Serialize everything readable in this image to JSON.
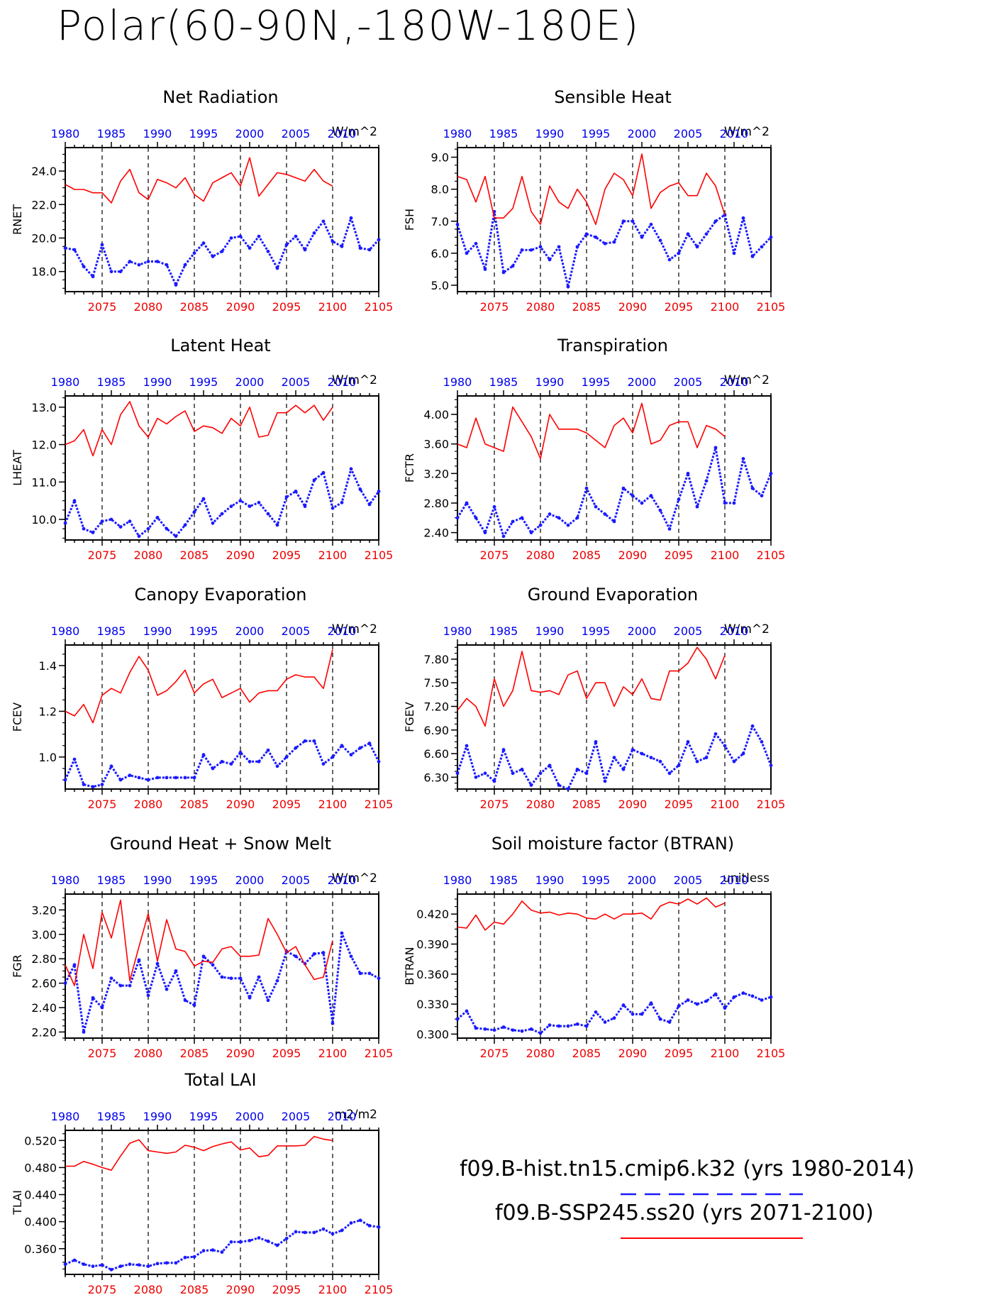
{
  "page": {
    "title": "Polar(60-90N,-180W-180E)",
    "legend": {
      "entries": [
        {
          "label": "f09.B-hist.tn15.cmip6.k32 (yrs 1980-2014)",
          "color": "#1a1aff",
          "style": "dashed"
        },
        {
          "label": "f09.B-SSP245.ss20 (yrs 2071-2100)",
          "color": "#ff0000",
          "style": "solid"
        }
      ]
    }
  },
  "chart_data": [
    {
      "type": "line",
      "title": "Net Radiation",
      "ylabel": "RNET",
      "unit": "W/m^2",
      "ylim": [
        16.8,
        25.4
      ],
      "yticks": [
        18.0,
        20.0,
        22.0,
        24.0
      ],
      "ytick_decimals": 1,
      "series": [
        {
          "axis": "top",
          "x_start": 1980,
          "values": [
            19.4,
            19.3,
            18.3,
            17.7,
            19.6,
            18.0,
            18.0,
            18.6,
            18.4,
            18.6,
            18.6,
            18.4,
            17.2,
            18.4,
            19.1,
            19.7,
            18.9,
            19.2,
            20.0,
            20.1,
            19.4,
            20.1,
            19.2,
            18.2,
            19.6,
            20.1,
            19.3,
            20.3,
            21.0,
            19.8,
            19.5,
            21.2,
            19.4,
            19.3,
            19.9
          ]
        },
        {
          "axis": "bottom",
          "x_start": 2071,
          "values": [
            23.2,
            22.9,
            22.9,
            22.7,
            22.7,
            22.1,
            23.4,
            24.1,
            22.7,
            22.3,
            23.5,
            23.3,
            23.0,
            23.6,
            22.6,
            22.2,
            23.3,
            23.6,
            23.9,
            23.1,
            24.8,
            22.5,
            23.2,
            23.9,
            23.8,
            23.6,
            23.4,
            24.1,
            23.4,
            23.1
          ]
        }
      ]
    },
    {
      "type": "line",
      "title": "Sensible Heat",
      "ylabel": "FSH",
      "unit": "W/m^2",
      "ylim": [
        4.8,
        9.3
      ],
      "yticks": [
        5.0,
        6.0,
        7.0,
        8.0,
        9.0
      ],
      "ytick_decimals": 1,
      "series": [
        {
          "axis": "top",
          "x_start": 1980,
          "values": [
            6.9,
            6.0,
            6.3,
            5.5,
            7.3,
            5.4,
            5.6,
            6.1,
            6.1,
            6.2,
            5.8,
            6.2,
            4.95,
            6.2,
            6.6,
            6.5,
            6.3,
            6.35,
            7.0,
            7.0,
            6.5,
            6.9,
            6.4,
            5.8,
            6.0,
            6.6,
            6.2,
            6.6,
            7.0,
            7.2,
            6.0,
            7.1,
            5.9,
            6.2,
            6.5
          ]
        },
        {
          "axis": "bottom",
          "x_start": 2071,
          "values": [
            8.4,
            8.3,
            7.6,
            8.4,
            7.1,
            7.1,
            7.4,
            8.4,
            7.3,
            6.9,
            8.1,
            7.6,
            7.4,
            8.0,
            7.6,
            6.9,
            8.0,
            8.5,
            8.3,
            7.8,
            9.1,
            7.4,
            7.9,
            8.1,
            8.2,
            7.8,
            7.8,
            8.5,
            8.1,
            7.2
          ]
        }
      ]
    },
    {
      "type": "line",
      "title": "Latent Heat",
      "ylabel": "LHEAT",
      "unit": "W/m^2",
      "ylim": [
        9.45,
        13.3
      ],
      "yticks": [
        10.0,
        11.0,
        12.0,
        13.0
      ],
      "ytick_decimals": 1,
      "series": [
        {
          "axis": "top",
          "x_start": 1980,
          "values": [
            9.9,
            10.5,
            9.75,
            9.65,
            9.95,
            10.0,
            9.8,
            9.95,
            9.55,
            9.75,
            10.05,
            9.75,
            9.55,
            9.85,
            10.2,
            10.55,
            9.9,
            10.15,
            10.35,
            10.5,
            10.35,
            10.45,
            10.15,
            9.85,
            10.6,
            10.75,
            10.35,
            11.05,
            11.25,
            10.3,
            10.45,
            11.35,
            10.8,
            10.4,
            10.75
          ]
        },
        {
          "axis": "bottom",
          "x_start": 2071,
          "values": [
            12.0,
            12.1,
            12.4,
            11.7,
            12.4,
            12.0,
            12.8,
            13.15,
            12.5,
            12.2,
            12.7,
            12.55,
            12.75,
            12.9,
            12.35,
            12.5,
            12.45,
            12.3,
            12.7,
            12.5,
            13.0,
            12.2,
            12.25,
            12.85,
            12.85,
            13.05,
            12.85,
            13.05,
            12.65,
            13.0
          ]
        }
      ]
    },
    {
      "type": "line",
      "title": "Transpiration",
      "ylabel": "FCTR",
      "unit": "W/m^2",
      "ylim": [
        2.3,
        4.25
      ],
      "yticks": [
        2.4,
        2.8,
        3.2,
        3.6,
        4.0
      ],
      "ytick_decimals": 2,
      "series": [
        {
          "axis": "top",
          "x_start": 1980,
          "values": [
            2.6,
            2.8,
            2.6,
            2.4,
            2.75,
            2.35,
            2.55,
            2.6,
            2.4,
            2.5,
            2.65,
            2.6,
            2.5,
            2.6,
            3.0,
            2.75,
            2.65,
            2.55,
            3.0,
            2.9,
            2.8,
            2.9,
            2.7,
            2.45,
            2.85,
            3.2,
            2.75,
            3.1,
            3.55,
            2.8,
            2.8,
            3.4,
            3.0,
            2.9,
            3.2
          ]
        },
        {
          "axis": "bottom",
          "x_start": 2071,
          "values": [
            3.6,
            3.55,
            3.95,
            3.6,
            3.55,
            3.5,
            4.1,
            3.9,
            3.7,
            3.4,
            4.0,
            3.8,
            3.8,
            3.8,
            3.75,
            3.65,
            3.55,
            3.85,
            3.95,
            3.75,
            4.15,
            3.6,
            3.65,
            3.85,
            3.9,
            3.9,
            3.55,
            3.85,
            3.8,
            3.7
          ]
        }
      ]
    },
    {
      "type": "line",
      "title": "Canopy Evaporation",
      "ylabel": "FCEV",
      "unit": "W/m^2",
      "ylim": [
        0.86,
        1.49
      ],
      "yticks": [
        1.0,
        1.2,
        1.4
      ],
      "ytick_decimals": 1,
      "series": [
        {
          "axis": "top",
          "x_start": 1980,
          "values": [
            0.9,
            0.99,
            0.88,
            0.87,
            0.88,
            0.96,
            0.9,
            0.92,
            0.91,
            0.9,
            0.91,
            0.91,
            0.91,
            0.91,
            0.91,
            1.01,
            0.95,
            0.98,
            0.97,
            1.02,
            0.98,
            0.98,
            1.03,
            0.96,
            1.0,
            1.04,
            1.07,
            1.07,
            0.97,
            1.0,
            1.05,
            1.01,
            1.04,
            1.06,
            0.98
          ]
        },
        {
          "axis": "bottom",
          "x_start": 2071,
          "values": [
            1.2,
            1.18,
            1.23,
            1.15,
            1.27,
            1.3,
            1.28,
            1.37,
            1.44,
            1.38,
            1.27,
            1.29,
            1.33,
            1.38,
            1.28,
            1.32,
            1.34,
            1.26,
            1.28,
            1.3,
            1.24,
            1.28,
            1.29,
            1.29,
            1.34,
            1.36,
            1.35,
            1.35,
            1.3,
            1.47
          ]
        }
      ]
    },
    {
      "type": "line",
      "title": "Ground Evaporation",
      "ylabel": "FGEV",
      "unit": "W/m^2",
      "ylim": [
        6.15,
        7.98
      ],
      "yticks": [
        6.3,
        6.6,
        6.9,
        7.2,
        7.5,
        7.8
      ],
      "ytick_decimals": 2,
      "series": [
        {
          "axis": "top",
          "x_start": 1980,
          "values": [
            6.35,
            6.7,
            6.3,
            6.35,
            6.25,
            6.65,
            6.35,
            6.4,
            6.2,
            6.35,
            6.45,
            6.2,
            6.15,
            6.4,
            6.35,
            6.75,
            6.25,
            6.55,
            6.4,
            6.65,
            6.6,
            6.55,
            6.5,
            6.35,
            6.45,
            6.75,
            6.5,
            6.55,
            6.85,
            6.7,
            6.5,
            6.6,
            6.95,
            6.75,
            6.45
          ]
        },
        {
          "axis": "bottom",
          "x_start": 2071,
          "values": [
            7.15,
            7.3,
            7.2,
            6.95,
            7.55,
            7.2,
            7.4,
            7.9,
            7.4,
            7.38,
            7.4,
            7.35,
            7.6,
            7.65,
            7.3,
            7.5,
            7.5,
            7.2,
            7.45,
            7.35,
            7.55,
            7.3,
            7.28,
            7.65,
            7.65,
            7.75,
            7.95,
            7.8,
            7.55,
            7.85
          ]
        }
      ]
    },
    {
      "type": "line",
      "title": "Ground Heat + Snow Melt",
      "ylabel": "FGR",
      "unit": "W/m^2",
      "ylim": [
        2.15,
        3.33
      ],
      "yticks": [
        2.2,
        2.4,
        2.6,
        2.8,
        3.0,
        3.2
      ],
      "ytick_decimals": 2,
      "series": [
        {
          "axis": "top",
          "x_start": 1980,
          "values": [
            2.6,
            2.75,
            2.2,
            2.48,
            2.4,
            2.64,
            2.58,
            2.58,
            2.79,
            2.5,
            2.76,
            2.55,
            2.7,
            2.46,
            2.42,
            2.82,
            2.75,
            2.65,
            2.64,
            2.64,
            2.48,
            2.65,
            2.46,
            2.62,
            2.86,
            2.82,
            2.76,
            2.84,
            2.85,
            2.27,
            3.01,
            2.82,
            2.68,
            2.68,
            2.64
          ]
        },
        {
          "axis": "bottom",
          "x_start": 2071,
          "values": [
            2.75,
            2.58,
            3.0,
            2.72,
            3.18,
            2.97,
            3.28,
            2.62,
            2.9,
            3.17,
            2.78,
            3.12,
            2.88,
            2.86,
            2.74,
            2.78,
            2.77,
            2.88,
            2.9,
            2.82,
            2.82,
            2.83,
            3.13,
            3.0,
            2.85,
            2.9,
            2.75,
            2.63,
            2.65,
            2.95
          ]
        }
      ]
    },
    {
      "type": "line",
      "title": "Soil moisture factor (BTRAN)",
      "ylabel": "BTRAN",
      "unit": "unitless",
      "ylim": [
        0.296,
        0.44
      ],
      "yticks": [
        0.3,
        0.33,
        0.36,
        0.39,
        0.42
      ],
      "ytick_decimals": 3,
      "series": [
        {
          "axis": "top",
          "x_start": 1980,
          "values": [
            0.315,
            0.323,
            0.306,
            0.305,
            0.304,
            0.307,
            0.304,
            0.303,
            0.305,
            0.301,
            0.309,
            0.308,
            0.308,
            0.31,
            0.308,
            0.322,
            0.312,
            0.316,
            0.329,
            0.32,
            0.32,
            0.331,
            0.315,
            0.312,
            0.328,
            0.334,
            0.33,
            0.333,
            0.34,
            0.326,
            0.337,
            0.341,
            0.338,
            0.334,
            0.337
          ]
        },
        {
          "axis": "bottom",
          "x_start": 2071,
          "values": [
            0.407,
            0.406,
            0.419,
            0.404,
            0.412,
            0.41,
            0.42,
            0.433,
            0.424,
            0.421,
            0.422,
            0.419,
            0.421,
            0.42,
            0.416,
            0.415,
            0.42,
            0.415,
            0.42,
            0.42,
            0.421,
            0.415,
            0.428,
            0.432,
            0.43,
            0.435,
            0.43,
            0.436,
            0.427,
            0.431
          ]
        }
      ]
    },
    {
      "type": "line",
      "title": "Total LAI",
      "ylabel": "TLAI",
      "unit": "m2/m2",
      "ylim": [
        0.322,
        0.535
      ],
      "yticks": [
        0.36,
        0.4,
        0.44,
        0.48,
        0.52
      ],
      "ytick_decimals": 3,
      "series": [
        {
          "axis": "top",
          "x_start": 1980,
          "values": [
            0.337,
            0.343,
            0.337,
            0.334,
            0.336,
            0.329,
            0.334,
            0.337,
            0.336,
            0.334,
            0.338,
            0.339,
            0.339,
            0.347,
            0.348,
            0.357,
            0.358,
            0.355,
            0.37,
            0.37,
            0.372,
            0.376,
            0.371,
            0.365,
            0.375,
            0.385,
            0.384,
            0.384,
            0.389,
            0.382,
            0.387,
            0.398,
            0.402,
            0.394,
            0.392
          ]
        },
        {
          "axis": "bottom",
          "x_start": 2071,
          "values": [
            0.482,
            0.482,
            0.489,
            0.485,
            0.48,
            0.476,
            0.497,
            0.516,
            0.521,
            0.505,
            0.503,
            0.501,
            0.503,
            0.513,
            0.51,
            0.505,
            0.511,
            0.515,
            0.518,
            0.506,
            0.509,
            0.496,
            0.498,
            0.512,
            0.512,
            0.512,
            0.513,
            0.526,
            0.522,
            0.52
          ]
        }
      ]
    }
  ],
  "axes": {
    "top_ticks": [
      1980,
      1985,
      1990,
      1995,
      2000,
      2005,
      2010
    ],
    "bottom_ticks": [
      2075,
      2080,
      2085,
      2090,
      2095,
      2100,
      2105
    ],
    "top_range": [
      1980,
      2014
    ],
    "bottom_range": [
      2071,
      2105
    ],
    "dashed_gridlines": [
      2075,
      2080,
      2085,
      2090,
      2095,
      2100
    ],
    "top_color": "#0000ee",
    "bottom_color": "#ee0000",
    "hist_line_color": "#1a1aff",
    "ssp_line_color": "#ff0000"
  }
}
